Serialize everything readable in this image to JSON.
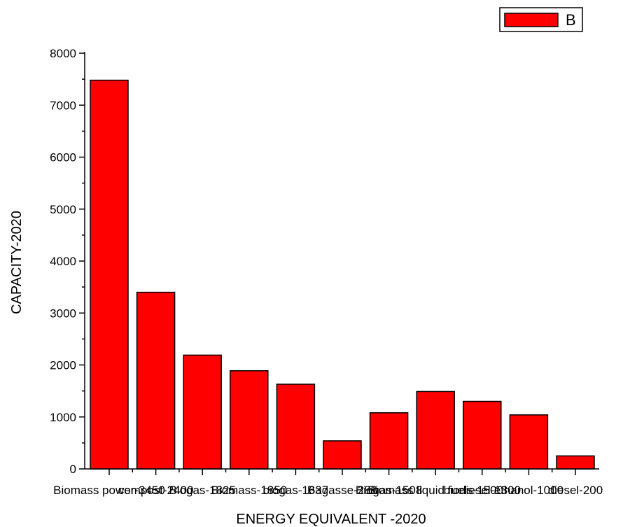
{
  "chart_data": {
    "type": "bar",
    "categories": [
      "Biomass power-3450",
      "compost-2400",
      "Biogas-1825",
      "Biomass-1850",
      "biogas-1637",
      "Bagasse-288",
      "Biogas-1508",
      "Biomass liquid fuels-1500",
      "biodiesel-1300",
      "ethanol-1000",
      "diesel-200"
    ],
    "values": [
      7480,
      3400,
      2190,
      1890,
      1630,
      540,
      1080,
      1490,
      1300,
      1040,
      250
    ],
    "series": [
      {
        "name": "B",
        "values": [
          7480,
          3400,
          2190,
          1890,
          1630,
          540,
          1080,
          1490,
          1300,
          1040,
          250
        ]
      }
    ],
    "xlabel": "ENERGY EQUIVALENT -2020",
    "ylabel": "CAPACITY-2020",
    "ylim": [
      0,
      8000
    ],
    "yticks": [
      0,
      1000,
      2000,
      3000,
      4000,
      5000,
      6000,
      7000,
      8000
    ],
    "legend": {
      "position": "top-right",
      "entries": [
        "B"
      ]
    },
    "colors": {
      "bar": "#ff0000",
      "stroke": "#000000"
    },
    "grid": false
  }
}
